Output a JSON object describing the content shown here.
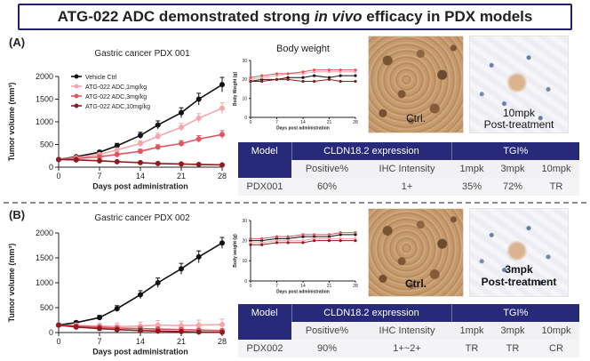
{
  "title": {
    "prefix": "ATG-022 ADC demonstrated strong ",
    "italic": "in vivo",
    "suffix": " efficacy in PDX models"
  },
  "panel_a": {
    "label": "(A)",
    "chart_title": "Gastric cancer PDX 001",
    "bw_title": "Body weight",
    "ctrl_label": "Ctrl.",
    "post_label_1": "10mpk",
    "post_label_2": "Post-treatment"
  },
  "panel_b": {
    "label": "(B)",
    "chart_title": "Gastric cancer PDX 002",
    "ctrl_label": "Ctrl.",
    "post_label_1": "3mpk",
    "post_label_2": "Post-treatment"
  },
  "colors": {
    "vehicle": "#111111",
    "low": "#f2a7ab",
    "mid": "#dd5660",
    "high": "#8f1a1f",
    "table_header": "#262a78"
  },
  "table_a": {
    "h_model": "Model",
    "h_expr": "CLDN18.2 expression",
    "h_tgi": "TGI%",
    "s_pos": "Positive%",
    "s_ihc": "IHC Intensity",
    "s_1": "1mpk",
    "s_3": "3mpk",
    "s_10": "10mpk",
    "model": "PDX001",
    "pos": "60%",
    "ihc": "1+",
    "t1": "35%",
    "t3": "72%",
    "t10": "TR"
  },
  "table_b": {
    "h_model": "Model",
    "h_expr": "CLDN18.2 expression",
    "h_tgi": "TGI%",
    "s_pos": "Positive%",
    "s_ihc": "IHC Intensity",
    "s_1": "1mpk",
    "s_3": "3mpk",
    "s_10": "10mpk",
    "model": "PDX002",
    "pos": "90%",
    "ihc": "1+~2+",
    "t1": "TR",
    "t3": "TR",
    "t10": "CR"
  },
  "chart_data": [
    {
      "id": "tv_a",
      "type": "line",
      "title": "Gastric cancer PDX 001",
      "xlabel": "Days post administration",
      "ylabel": "Tumor volume (mm³)",
      "xlim": [
        0,
        28
      ],
      "ylim": [
        0,
        2000
      ],
      "xticks": [
        0,
        7,
        14,
        21,
        28
      ],
      "yticks": [
        0,
        500,
        1000,
        1500,
        2000
      ],
      "legend": "top-left",
      "x": [
        0,
        3,
        7,
        10,
        14,
        17,
        21,
        24,
        28
      ],
      "series": [
        {
          "name": "Vehicle Ctrl",
          "color": "#111111",
          "values": [
            170,
            230,
            330,
            470,
            700,
            930,
            1200,
            1500,
            1820
          ],
          "err": [
            20,
            30,
            40,
            55,
            70,
            90,
            110,
            130,
            160
          ]
        },
        {
          "name": "ATG-022 ADC,1mg/kg",
          "color": "#f2a7ab",
          "values": [
            170,
            210,
            280,
            380,
            520,
            680,
            880,
            1080,
            1300
          ],
          "err": [
            20,
            25,
            35,
            45,
            60,
            70,
            85,
            100,
            120
          ]
        },
        {
          "name": "ATG-022 ADC,3mg/kg",
          "color": "#dd5660",
          "values": [
            170,
            190,
            230,
            280,
            350,
            440,
            520,
            620,
            720
          ],
          "err": [
            20,
            25,
            30,
            35,
            45,
            55,
            65,
            75,
            85
          ]
        },
        {
          "name": "ATG-022 ADC,10mg/kg",
          "color": "#8f1a1f",
          "values": [
            170,
            160,
            140,
            120,
            100,
            80,
            70,
            60,
            50
          ],
          "err": [
            20,
            20,
            18,
            16,
            14,
            12,
            10,
            10,
            10
          ]
        }
      ]
    },
    {
      "id": "bw_a",
      "type": "line",
      "title": "Body weight",
      "xlabel": "Days post administration",
      "ylabel": "Body Weight (g)",
      "xlim": [
        0,
        28
      ],
      "ylim": [
        0,
        30
      ],
      "xticks": [
        0,
        7,
        14,
        21,
        28
      ],
      "yticks": [
        0,
        10,
        20,
        30
      ],
      "x": [
        0,
        3,
        7,
        10,
        14,
        17,
        21,
        24,
        28
      ],
      "series": [
        {
          "name": "Vehicle Ctrl",
          "color": "#111111",
          "values": [
            19,
            20,
            20,
            21,
            21,
            22,
            21,
            22,
            22
          ]
        },
        {
          "name": "ATG-022 ADC,1mg/kg",
          "color": "#f2a7ab",
          "values": [
            20,
            21,
            22,
            23,
            23,
            24,
            24,
            24,
            24
          ]
        },
        {
          "name": "ATG-022 ADC,3mg/kg",
          "color": "#dd5660",
          "values": [
            21,
            22,
            23,
            23,
            24,
            25,
            25,
            25,
            25
          ]
        },
        {
          "name": "ATG-022 ADC,10mg/kg",
          "color": "#8f1a1f",
          "values": [
            19,
            19,
            20,
            20,
            19,
            19,
            20,
            19,
            19
          ]
        }
      ]
    },
    {
      "id": "tv_b",
      "type": "line",
      "title": "Gastric cancer PDX 002",
      "xlabel": "Days post administration",
      "ylabel": "Tumor volume (mm³)",
      "xlim": [
        0,
        28
      ],
      "ylim": [
        0,
        2000
      ],
      "xticks": [
        0,
        7,
        14,
        21,
        28
      ],
      "yticks": [
        0,
        500,
        1000,
        1500,
        2000
      ],
      "x": [
        0,
        3,
        7,
        10,
        14,
        17,
        21,
        24,
        28
      ],
      "series": [
        {
          "name": "Vehicle Ctrl",
          "color": "#111111",
          "values": [
            150,
            200,
            300,
            480,
            760,
            1000,
            1280,
            1520,
            1800
          ],
          "err": [
            20,
            30,
            45,
            60,
            80,
            95,
            110,
            120,
            110
          ]
        },
        {
          "name": "ATG-022 ADC,1mg/kg",
          "color": "#f2a7ab",
          "values": [
            150,
            140,
            130,
            120,
            130,
            150,
            140,
            150,
            160
          ],
          "err": [
            40,
            50,
            60,
            70,
            80,
            90,
            90,
            100,
            110
          ]
        },
        {
          "name": "ATG-022 ADC,3mg/kg",
          "color": "#dd5660",
          "values": [
            150,
            130,
            110,
            90,
            80,
            70,
            60,
            50,
            40
          ],
          "err": [
            30,
            35,
            40,
            40,
            40,
            40,
            35,
            30,
            30
          ]
        },
        {
          "name": "ATG-022 ADC,10mg/kg",
          "color": "#8f1a1f",
          "values": [
            150,
            110,
            80,
            60,
            40,
            30,
            20,
            10,
            5
          ],
          "err": [
            25,
            25,
            20,
            20,
            15,
            15,
            10,
            10,
            5
          ]
        }
      ]
    },
    {
      "id": "bw_b",
      "type": "line",
      "title": "",
      "xlabel": "Days post administration",
      "ylabel": "Body weight (g)",
      "xlim": [
        0,
        28
      ],
      "ylim": [
        0,
        30
      ],
      "xticks": [
        0,
        7,
        14,
        21,
        28
      ],
      "yticks": [
        0,
        10,
        20,
        30
      ],
      "x": [
        0,
        3,
        7,
        10,
        14,
        17,
        21,
        24,
        28
      ],
      "series": [
        {
          "name": "Vehicle Ctrl",
          "color": "#111111",
          "values": [
            20,
            20,
            21,
            21,
            22,
            22,
            22,
            23,
            23
          ]
        },
        {
          "name": "ATG-022 ADC,1mg/kg",
          "color": "#f2a7ab",
          "values": [
            19,
            19,
            20,
            20,
            20,
            21,
            21,
            21,
            21
          ]
        },
        {
          "name": "ATG-022 ADC,3mg/kg",
          "color": "#dd5660",
          "values": [
            21,
            21,
            22,
            22,
            23,
            23,
            23,
            24,
            24
          ]
        },
        {
          "name": "ATG-022 ADC,10mg/kg",
          "color": "#8f1a1f",
          "values": [
            18,
            18,
            19,
            19,
            19,
            20,
            20,
            20,
            20
          ]
        }
      ]
    }
  ]
}
